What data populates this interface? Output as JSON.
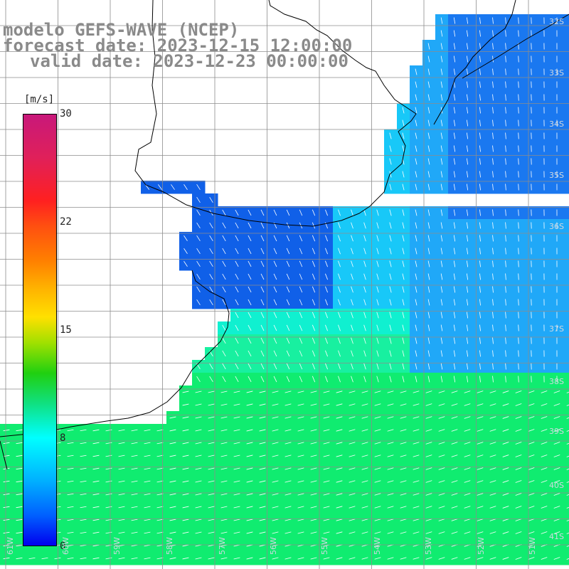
{
  "title": {
    "line1": "modelo GEFS-WAVE (NCEP)",
    "line2": "forecast date: 2023-12-15 12:00:00",
    "line3": "valid date: 2023-12-23 00:00:00"
  },
  "colorbar": {
    "units": "[m/s]",
    "ticks": [
      "30",
      "22",
      "15",
      "8",
      "0"
    ],
    "tick_values": [
      30,
      22,
      15,
      8,
      0
    ],
    "min": 0,
    "max": 30
  },
  "lat_labels": [
    "32S",
    "33S",
    "34S",
    "35S",
    "36S",
    "37S",
    "38S",
    "39S",
    "40S",
    "41S"
  ],
  "lon_labels": [
    "61W",
    "60W",
    "59W",
    "58W",
    "57W",
    "56W",
    "55W",
    "54W",
    "53W",
    "52W",
    "51W"
  ],
  "colors": {
    "land": "#ffffff",
    "coast": "#000000",
    "grid": "#8c8c8c",
    "arrow": "#ffffff",
    "title": "#8a8a8a"
  }
}
